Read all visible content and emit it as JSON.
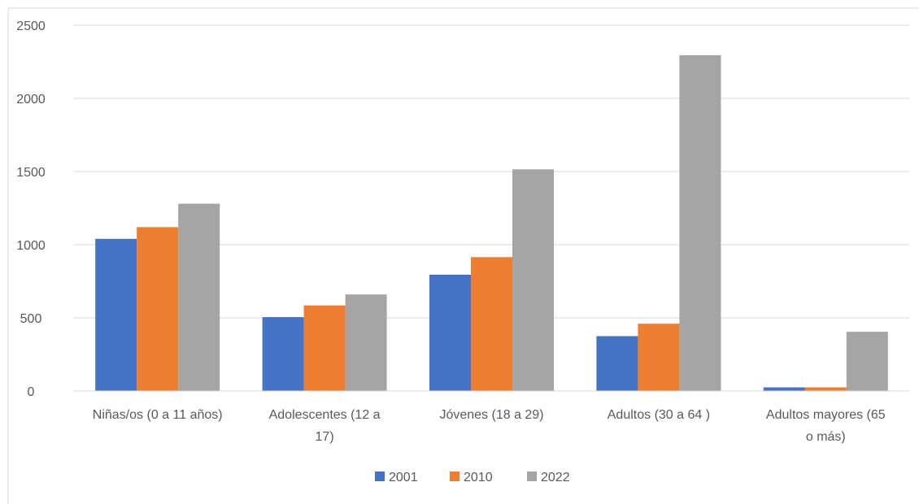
{
  "chart_data": {
    "type": "bar",
    "categories": [
      [
        "Niñas/os (0 a 11 años)"
      ],
      [
        "Adolescentes (12 a",
        "17)"
      ],
      [
        "Jóvenes (18 a 29)"
      ],
      [
        "Adultos  (30 a 64 )"
      ],
      [
        "Adultos mayores (65",
        "o más)"
      ]
    ],
    "series": [
      {
        "name": "2001",
        "color": "#4472c4",
        "values": [
          1040,
          505,
          795,
          375,
          25
        ]
      },
      {
        "name": "2010",
        "color": "#ed7d31",
        "values": [
          1120,
          585,
          915,
          460,
          25
        ]
      },
      {
        "name": "2022",
        "color": "#a5a5a5",
        "values": [
          1280,
          660,
          1515,
          2295,
          405
        ]
      }
    ],
    "ylim": [
      0,
      2500
    ],
    "yticks": [
      0,
      500,
      1000,
      1500,
      2000,
      2500
    ],
    "grid": true,
    "legend": "bottom",
    "title": "",
    "xlabel": "",
    "ylabel": ""
  }
}
